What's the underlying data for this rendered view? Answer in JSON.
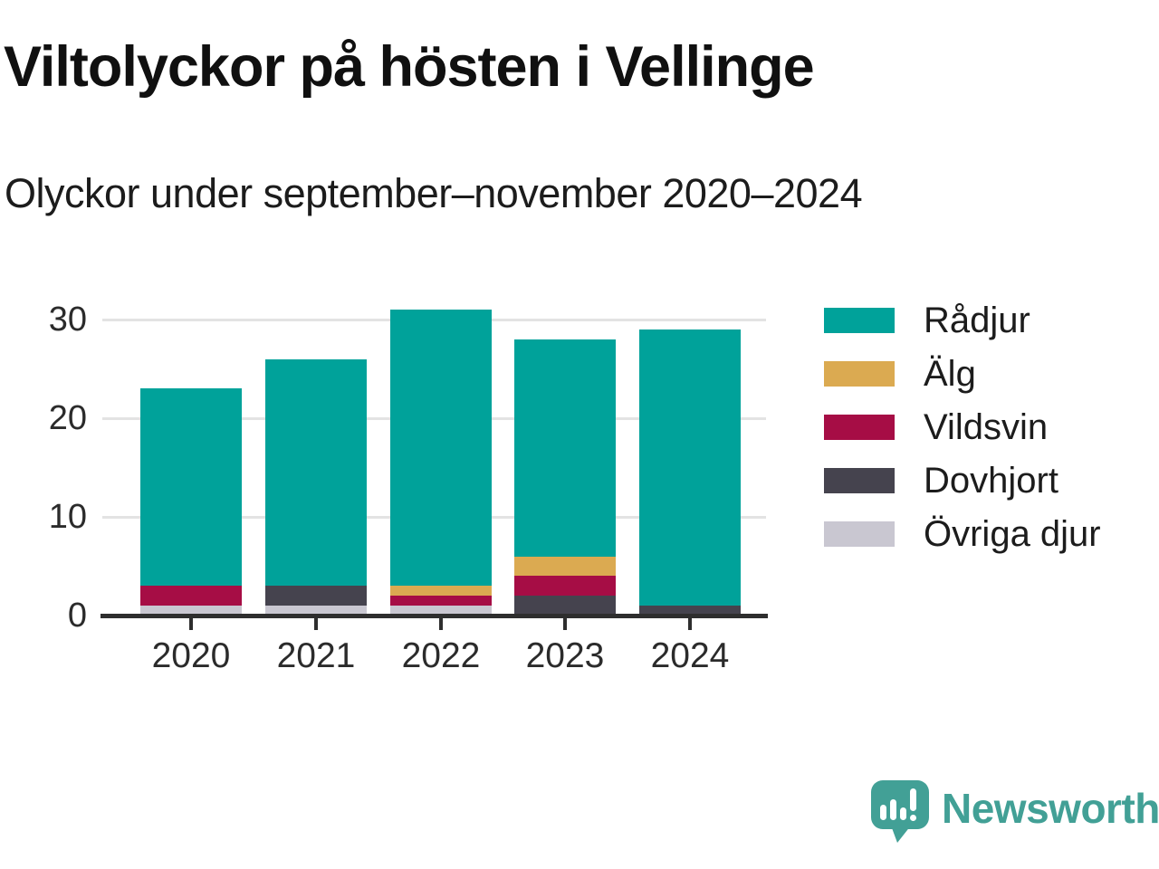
{
  "header": {
    "title": "Viltolyckor på hösten i Vellinge",
    "subtitle": "Olyckor under september–november 2020–2024"
  },
  "chart_data": {
    "type": "bar",
    "stacked": true,
    "title": "Viltolyckor på hösten i Vellinge",
    "subtitle": "Olyckor under september–november 2020–2024",
    "categories": [
      "2020",
      "2021",
      "2022",
      "2023",
      "2024"
    ],
    "series": [
      {
        "name": "Rådjur",
        "color": "#00a29a",
        "values": [
          20,
          23,
          28,
          22,
          28
        ]
      },
      {
        "name": "Älg",
        "color": "#dbaa51",
        "values": [
          0,
          0,
          1,
          2,
          0
        ]
      },
      {
        "name": "Vildsvin",
        "color": "#a60d45",
        "values": [
          2,
          0,
          1,
          2,
          0
        ]
      },
      {
        "name": "Dovhjort",
        "color": "#45434e",
        "values": [
          0,
          2,
          0,
          2,
          1
        ]
      },
      {
        "name": "Övriga djur",
        "color": "#c9c7d1",
        "values": [
          1,
          1,
          1,
          0,
          0
        ]
      }
    ],
    "totals": [
      23,
      26,
      31,
      28,
      29
    ],
    "stack_order_bottom_to_top": [
      "Övriga djur",
      "Dovhjort",
      "Vildsvin",
      "Älg",
      "Rådjur"
    ],
    "xlabel": "",
    "ylabel": "",
    "yticks": [
      0,
      10,
      20,
      30
    ],
    "ylim": [
      0,
      31.5
    ],
    "grid": "horizontal",
    "legend_position": "right"
  },
  "footer": {
    "brand": "Newsworthy",
    "brand_color": "#42a096"
  }
}
